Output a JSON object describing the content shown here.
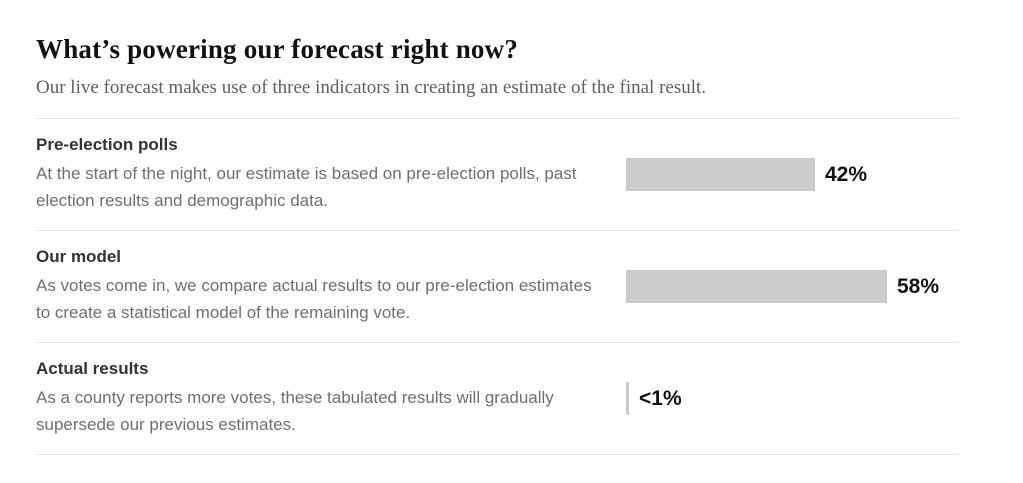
{
  "header": {
    "title": "What’s powering our forecast right now?",
    "subtitle": "Our live forecast makes use of three indicators in creating an estimate of the final result."
  },
  "chart_data": {
    "type": "bar",
    "orientation": "horizontal",
    "unit": "%",
    "value_axis_shown": false,
    "grid": false,
    "legend": "none",
    "categories": [
      "Pre-election polls",
      "Our model",
      "Actual results"
    ],
    "values": [
      42,
      58,
      0.7
    ],
    "rows": [
      {
        "label": "Pre-election polls",
        "description": "At the start of the night, our estimate is based on pre-election polls, past election results and demographic data.",
        "value_label": "42%",
        "value_percent": 42
      },
      {
        "label": "Our model",
        "description": "As votes come in, we compare actual results to our pre-election estimates to create a statistical model of the remaining vote.",
        "value_label": "58%",
        "value_percent": 58
      },
      {
        "label": "Actual results",
        "description": "As a county reports more votes, these tabulated results will gradually supersede our previous estimates.",
        "value_label": "<1%",
        "value_percent": 0.7
      }
    ],
    "colors": {
      "bar": "#cccccc",
      "divider": "#e2e2e2",
      "text": "#121212",
      "muted": "#5f5f5f"
    }
  }
}
